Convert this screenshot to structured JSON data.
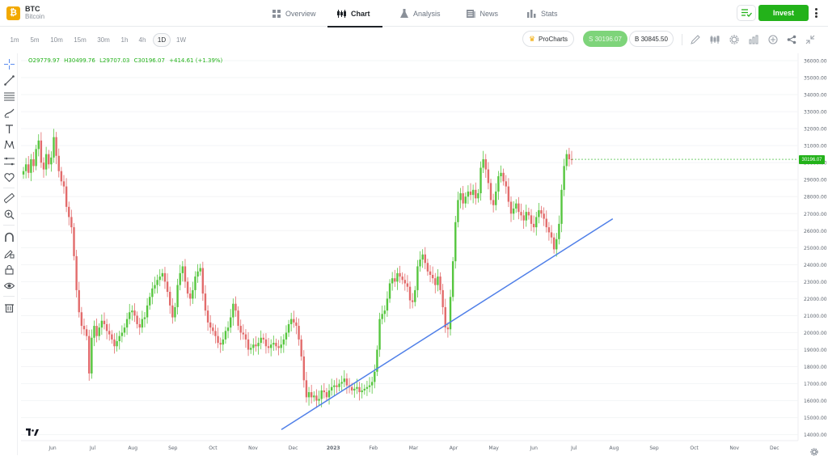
{
  "asset": {
    "symbol": "BTC",
    "name": "Bitcoin",
    "logo_glyph": "₿",
    "logo_color": "#f2a900"
  },
  "tabs": [
    {
      "label": "Overview",
      "icon": "grid-icon"
    },
    {
      "label": "Chart",
      "icon": "candles-icon",
      "active": true
    },
    {
      "label": "Analysis",
      "icon": "flask-icon"
    },
    {
      "label": "News",
      "icon": "newspaper-icon"
    },
    {
      "label": "Stats",
      "icon": "bar-stats-icon"
    }
  ],
  "header": {
    "invest_label": "Invest",
    "accent": "#23b21a"
  },
  "timeframes": [
    "1m",
    "5m",
    "10m",
    "15m",
    "30m",
    "1h",
    "4h",
    "1D",
    "1W"
  ],
  "selected_timeframe": "1D",
  "toolbar": {
    "procharts_label": "ProCharts",
    "sell_label": "S 30196.07",
    "buy_label": "B 30845.50"
  },
  "ohlc": {
    "open": "O29779.97",
    "high": "H30499.76",
    "low": "L29707.03",
    "close": "C30196.07",
    "change": "+414.61 (+1.39%)"
  },
  "chart_data": {
    "type": "candlestick",
    "instrument": "BTC",
    "timeframe": "1D",
    "x_ticks": [
      "Jun",
      "Jul",
      "Aug",
      "Sep",
      "Oct",
      "Nov",
      "Dec",
      "2023",
      "Feb",
      "Mar",
      "Apr",
      "May",
      "Jun",
      "Jul",
      "Aug",
      "Sep",
      "Oct",
      "Nov",
      "Dec"
    ],
    "y_ticks": [
      "36000.00",
      "35000.00",
      "34000.00",
      "33000.00",
      "32000.00",
      "31000.00",
      "30000.00",
      "29000.00",
      "28000.00",
      "27000.00",
      "26000.00",
      "25000.00",
      "24000.00",
      "23000.00",
      "22000.00",
      "21000.00",
      "20000.00",
      "19000.00",
      "18000.00",
      "17000.00",
      "16000.00",
      "15000.00",
      "14000.00"
    ],
    "ylim": [
      13600,
      36600
    ],
    "last_price": "30196.07",
    "up_color": "#56c63f",
    "down_color": "#e26b6b",
    "approximate_closes": [
      [
        0,
        29500
      ],
      [
        1,
        29900
      ],
      [
        2,
        29400
      ],
      [
        3,
        30200
      ],
      [
        4,
        29800
      ],
      [
        5,
        30800
      ],
      [
        6,
        31300
      ],
      [
        7,
        30000
      ],
      [
        8,
        29600
      ],
      [
        9,
        30500
      ],
      [
        10,
        29900
      ],
      [
        11,
        30300
      ],
      [
        12,
        31500
      ],
      [
        13,
        30400
      ],
      [
        14,
        29500
      ],
      [
        15,
        28900
      ],
      [
        16,
        28600
      ],
      [
        17,
        27400
      ],
      [
        18,
        26800
      ],
      [
        19,
        26200
      ],
      [
        20,
        24500
      ],
      [
        21,
        22500
      ],
      [
        22,
        21200
      ],
      [
        23,
        20400
      ],
      [
        24,
        20200
      ],
      [
        25,
        19800
      ],
      [
        26,
        17600
      ],
      [
        27,
        19700
      ],
      [
        28,
        20400
      ],
      [
        29,
        19800
      ],
      [
        30,
        20300
      ],
      [
        31,
        20700
      ],
      [
        32,
        20500
      ],
      [
        33,
        20100
      ],
      [
        34,
        19900
      ],
      [
        35,
        19600
      ],
      [
        36,
        19200
      ],
      [
        37,
        19500
      ],
      [
        38,
        19800
      ],
      [
        39,
        20000
      ],
      [
        40,
        20300
      ],
      [
        41,
        20800
      ],
      [
        42,
        21200
      ],
      [
        43,
        21300
      ],
      [
        44,
        21000
      ],
      [
        45,
        20500
      ],
      [
        46,
        20300
      ],
      [
        47,
        20800
      ],
      [
        48,
        20900
      ],
      [
        49,
        21600
      ],
      [
        50,
        22100
      ],
      [
        51,
        22600
      ],
      [
        52,
        22800
      ],
      [
        53,
        23100
      ],
      [
        54,
        23300
      ],
      [
        55,
        23500
      ],
      [
        56,
        23000
      ],
      [
        57,
        22400
      ],
      [
        58,
        21600
      ],
      [
        59,
        20900
      ],
      [
        60,
        21500
      ],
      [
        61,
        22800
      ],
      [
        62,
        23500
      ],
      [
        63,
        23900
      ],
      [
        64,
        23000
      ],
      [
        65,
        22300
      ],
      [
        66,
        22000
      ],
      [
        67,
        22500
      ],
      [
        68,
        23300
      ],
      [
        69,
        23600
      ],
      [
        70,
        23800
      ],
      [
        71,
        22300
      ],
      [
        72,
        21300
      ],
      [
        73,
        20600
      ],
      [
        74,
        20300
      ],
      [
        75,
        20100
      ],
      [
        76,
        19800
      ],
      [
        77,
        19400
      ],
      [
        78,
        19300
      ],
      [
        79,
        19600
      ],
      [
        80,
        20100
      ],
      [
        81,
        20300
      ],
      [
        82,
        20900
      ],
      [
        83,
        21700
      ],
      [
        84,
        21300
      ],
      [
        85,
        20400
      ],
      [
        86,
        20000
      ],
      [
        87,
        19900
      ],
      [
        88,
        19600
      ],
      [
        89,
        19000
      ],
      [
        90,
        19100
      ],
      [
        91,
        19300
      ],
      [
        92,
        19200
      ],
      [
        93,
        19400
      ],
      [
        94,
        19700
      ],
      [
        95,
        19600
      ],
      [
        96,
        19200
      ],
      [
        97,
        19100
      ],
      [
        98,
        19300
      ],
      [
        99,
        19400
      ],
      [
        100,
        19200
      ],
      [
        101,
        19100
      ],
      [
        102,
        19300
      ],
      [
        103,
        19600
      ],
      [
        104,
        20000
      ],
      [
        105,
        20500
      ],
      [
        106,
        20800
      ],
      [
        107,
        20600
      ],
      [
        108,
        20400
      ],
      [
        109,
        19600
      ],
      [
        110,
        18600
      ],
      [
        111,
        17200
      ],
      [
        112,
        16200
      ],
      [
        113,
        16500
      ],
      [
        114,
        16200
      ],
      [
        115,
        16300
      ],
      [
        116,
        16000
      ],
      [
        117,
        16100
      ],
      [
        118,
        16600
      ],
      [
        119,
        16500
      ],
      [
        120,
        16200
      ],
      [
        121,
        16600
      ],
      [
        122,
        16800
      ],
      [
        123,
        16900
      ],
      [
        124,
        16800
      ],
      [
        125,
        17000
      ],
      [
        126,
        17100
      ],
      [
        127,
        17300
      ],
      [
        128,
        16900
      ],
      [
        129,
        16800
      ],
      [
        130,
        16600
      ],
      [
        131,
        16700
      ],
      [
        132,
        16800
      ],
      [
        133,
        16500
      ],
      [
        134,
        16600
      ],
      [
        135,
        16700
      ],
      [
        136,
        16800
      ],
      [
        137,
        16900
      ],
      [
        138,
        17100
      ],
      [
        139,
        17700
      ],
      [
        140,
        19000
      ],
      [
        141,
        20800
      ],
      [
        142,
        21100
      ],
      [
        143,
        21300
      ],
      [
        144,
        22000
      ],
      [
        145,
        22900
      ],
      [
        146,
        23200
      ],
      [
        147,
        23000
      ],
      [
        148,
        23500
      ],
      [
        149,
        23300
      ],
      [
        150,
        23100
      ],
      [
        151,
        22900
      ],
      [
        152,
        22700
      ],
      [
        153,
        21900
      ],
      [
        154,
        21800
      ],
      [
        155,
        22500
      ],
      [
        156,
        23900
      ],
      [
        157,
        24300
      ],
      [
        158,
        24600
      ],
      [
        159,
        24100
      ],
      [
        160,
        23600
      ],
      [
        161,
        23400
      ],
      [
        162,
        23200
      ],
      [
        163,
        22800
      ],
      [
        164,
        23300
      ],
      [
        165,
        22500
      ],
      [
        166,
        21500
      ],
      [
        167,
        20300
      ],
      [
        168,
        20200
      ],
      [
        169,
        22100
      ],
      [
        170,
        24200
      ],
      [
        171,
        26500
      ],
      [
        172,
        27800
      ],
      [
        173,
        28200
      ],
      [
        174,
        27600
      ],
      [
        175,
        28000
      ],
      [
        176,
        28300
      ],
      [
        177,
        28100
      ],
      [
        178,
        28400
      ],
      [
        179,
        27900
      ],
      [
        180,
        28200
      ],
      [
        181,
        29700
      ],
      [
        182,
        30200
      ],
      [
        183,
        29600
      ],
      [
        184,
        28800
      ],
      [
        185,
        27800
      ],
      [
        186,
        27500
      ],
      [
        187,
        28300
      ],
      [
        188,
        29200
      ],
      [
        189,
        29400
      ],
      [
        190,
        28900
      ],
      [
        191,
        28600
      ],
      [
        192,
        27700
      ],
      [
        193,
        27000
      ],
      [
        194,
        27300
      ],
      [
        195,
        27600
      ],
      [
        196,
        27100
      ],
      [
        197,
        26900
      ],
      [
        198,
        26600
      ],
      [
        199,
        27100
      ],
      [
        200,
        26900
      ],
      [
        201,
        26400
      ],
      [
        202,
        26200
      ],
      [
        203,
        26800
      ],
      [
        204,
        27200
      ],
      [
        205,
        27000
      ],
      [
        206,
        26700
      ],
      [
        207,
        26200
      ],
      [
        208,
        25900
      ],
      [
        209,
        25600
      ],
      [
        210,
        24900
      ],
      [
        211,
        25500
      ],
      [
        212,
        26400
      ],
      [
        213,
        28400
      ],
      [
        214,
        29800
      ],
      [
        215,
        30500
      ],
      [
        216,
        30200
      ],
      [
        217,
        30196
      ]
    ],
    "trendline": {
      "from": [
        "Nov",
        14300
      ],
      "to": [
        "Jul",
        26700
      ],
      "color": "#4f7fe8"
    }
  }
}
